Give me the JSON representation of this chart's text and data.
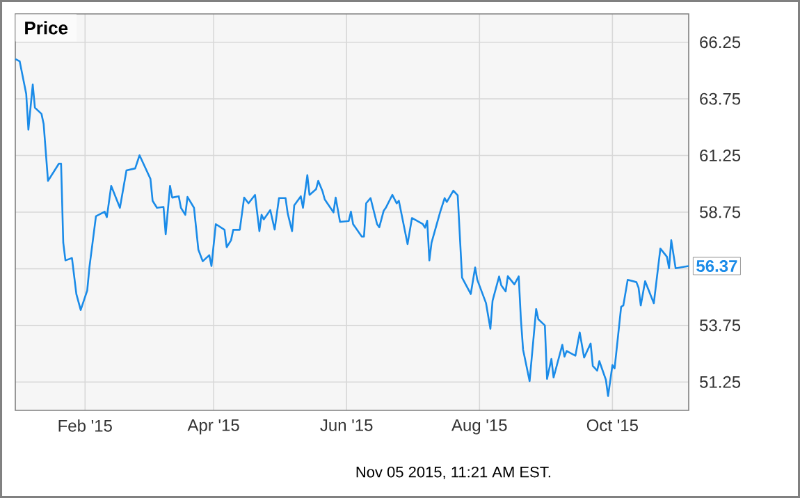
{
  "chart_data": {
    "type": "line",
    "title": "Price",
    "x": [
      "2014-12-31",
      "2015-01-02",
      "2015-01-05",
      "2015-01-06",
      "2015-01-08",
      "2015-01-09",
      "2015-01-12",
      "2015-01-13",
      "2015-01-15",
      "2015-01-20",
      "2015-01-21",
      "2015-01-22",
      "2015-01-23",
      "2015-01-26",
      "2015-01-28",
      "2015-01-30",
      "2015-02-02",
      "2015-02-03",
      "2015-02-06",
      "2015-02-10",
      "2015-02-11",
      "2015-02-13",
      "2015-02-17",
      "2015-02-20",
      "2015-02-24",
      "2015-02-26",
      "2015-03-03",
      "2015-03-04",
      "2015-03-06",
      "2015-03-09",
      "2015-03-10",
      "2015-03-12",
      "2015-03-13",
      "2015-03-16",
      "2015-03-17",
      "2015-03-19",
      "2015-03-20",
      "2015-03-23",
      "2015-03-25",
      "2015-03-27",
      "2015-03-30",
      "2015-03-31",
      "2015-04-02",
      "2015-04-06",
      "2015-04-07",
      "2015-04-09",
      "2015-04-10",
      "2015-04-13",
      "2015-04-15",
      "2015-04-17",
      "2015-04-20",
      "2015-04-22",
      "2015-04-23",
      "2015-04-24",
      "2015-04-27",
      "2015-04-29",
      "2015-05-01",
      "2015-05-04",
      "2015-05-05",
      "2015-05-07",
      "2015-05-08",
      "2015-05-11",
      "2015-05-12",
      "2015-05-14",
      "2015-05-15",
      "2015-05-18",
      "2015-05-19",
      "2015-05-21",
      "2015-05-22",
      "2015-05-26",
      "2015-05-27",
      "2015-05-29",
      "2015-06-02",
      "2015-06-03",
      "2015-06-04",
      "2015-06-08",
      "2015-06-09",
      "2015-06-10",
      "2015-06-12",
      "2015-06-15",
      "2015-06-16",
      "2015-06-18",
      "2015-06-19",
      "2015-06-22",
      "2015-06-24",
      "2015-06-25",
      "2015-06-29",
      "2015-07-01",
      "2015-07-06",
      "2015-07-07",
      "2015-07-08",
      "2015-07-09",
      "2015-07-10",
      "2015-07-14",
      "2015-07-16",
      "2015-07-17",
      "2015-07-20",
      "2015-07-22",
      "2015-07-24",
      "2015-07-28",
      "2015-07-30",
      "2015-07-31",
      "2015-08-04",
      "2015-08-06",
      "2015-08-07",
      "2015-08-10",
      "2015-08-11",
      "2015-08-13",
      "2015-08-14",
      "2015-08-17",
      "2015-08-19",
      "2015-08-20",
      "2015-08-21",
      "2015-08-24",
      "2015-08-27",
      "2015-08-28",
      "2015-08-31",
      "2015-09-01",
      "2015-09-03",
      "2015-09-04",
      "2015-09-08",
      "2015-09-09",
      "2015-09-10",
      "2015-09-14",
      "2015-09-16",
      "2015-09-18",
      "2015-09-21",
      "2015-09-22",
      "2015-09-24",
      "2015-09-25",
      "2015-09-28",
      "2015-09-29",
      "2015-10-01",
      "2015-10-02",
      "2015-10-05",
      "2015-10-06",
      "2015-10-08",
      "2015-10-12",
      "2015-10-13",
      "2015-10-14",
      "2015-10-16",
      "2015-10-20",
      "2015-10-23",
      "2015-10-26",
      "2015-10-27",
      "2015-10-28",
      "2015-10-30",
      "2015-11-03",
      "2015-11-05"
    ],
    "series": [
      {
        "color": "#1a8be8",
        "values": [
          65.51,
          65.41,
          63.97,
          62.39,
          64.38,
          63.36,
          63.09,
          62.64,
          60.13,
          60.89,
          60.89,
          57.4,
          56.62,
          56.72,
          55.14,
          54.43,
          55.29,
          56.31,
          58.57,
          58.77,
          58.53,
          59.91,
          58.94,
          60.59,
          60.68,
          61.26,
          60.22,
          59.25,
          58.94,
          58.98,
          57.77,
          59.91,
          59.39,
          59.45,
          58.94,
          58.63,
          59.42,
          58.94,
          57.09,
          56.58,
          56.85,
          56.37,
          58.22,
          57.97,
          57.2,
          57.51,
          57.97,
          57.97,
          59.39,
          59.14,
          59.51,
          57.91,
          58.63,
          58.43,
          58.84,
          57.98,
          59.37,
          59.37,
          58.69,
          57.91,
          59.05,
          59.45,
          58.94,
          60.38,
          59.51,
          59.76,
          60.13,
          59.66,
          59.31,
          58.74,
          59.39,
          58.32,
          58.36,
          58.77,
          58.22,
          57.67,
          57.67,
          59.14,
          59.37,
          58.22,
          58.08,
          58.8,
          58.94,
          59.51,
          59.14,
          59.25,
          57.34,
          58.49,
          58.22,
          58.06,
          58.37,
          56.62,
          57.4,
          58.77,
          59.37,
          59.2,
          59.7,
          59.49,
          55.86,
          55.14,
          56.31,
          55.76,
          54.73,
          53.6,
          54.84,
          55.91,
          55.52,
          55.25,
          55.92,
          55.56,
          55.91,
          54.02,
          52.68,
          51.29,
          54.47,
          54.02,
          53.75,
          51.39,
          52.27,
          51.45,
          52.89,
          52.37,
          52.62,
          52.41,
          53.44,
          52.33,
          52.95,
          51.96,
          51.75,
          52.17,
          51.35,
          50.63,
          52.0,
          51.85,
          54.57,
          54.63,
          55.76,
          55.66,
          55.41,
          54.63,
          55.7,
          54.73,
          57.14,
          56.78,
          56.27,
          57.51,
          56.27,
          56.34,
          56.37
        ]
      }
    ],
    "xlim": [
      "2014-12-31",
      "2015-11-05"
    ],
    "xticks": [
      {
        "value": "2015-02-01",
        "label": "Feb '15"
      },
      {
        "value": "2015-04-01",
        "label": "Apr '15"
      },
      {
        "value": "2015-06-01",
        "label": "Jun '15"
      },
      {
        "value": "2015-08-01",
        "label": "Aug '15"
      },
      {
        "value": "2015-10-01",
        "label": "Oct '15"
      }
    ],
    "ylim": [
      50,
      67.5
    ],
    "yticks": [
      51.25,
      53.75,
      {
        "value": 56.25,
        "label": null
      },
      58.75,
      61.25,
      63.75,
      66.25
    ],
    "grid": true,
    "annotations": [
      {
        "text": "56.37",
        "x": "2015-11-05",
        "y": 56.37
      },
      "Nov 05 2015, 11:21 AM EST."
    ]
  }
}
